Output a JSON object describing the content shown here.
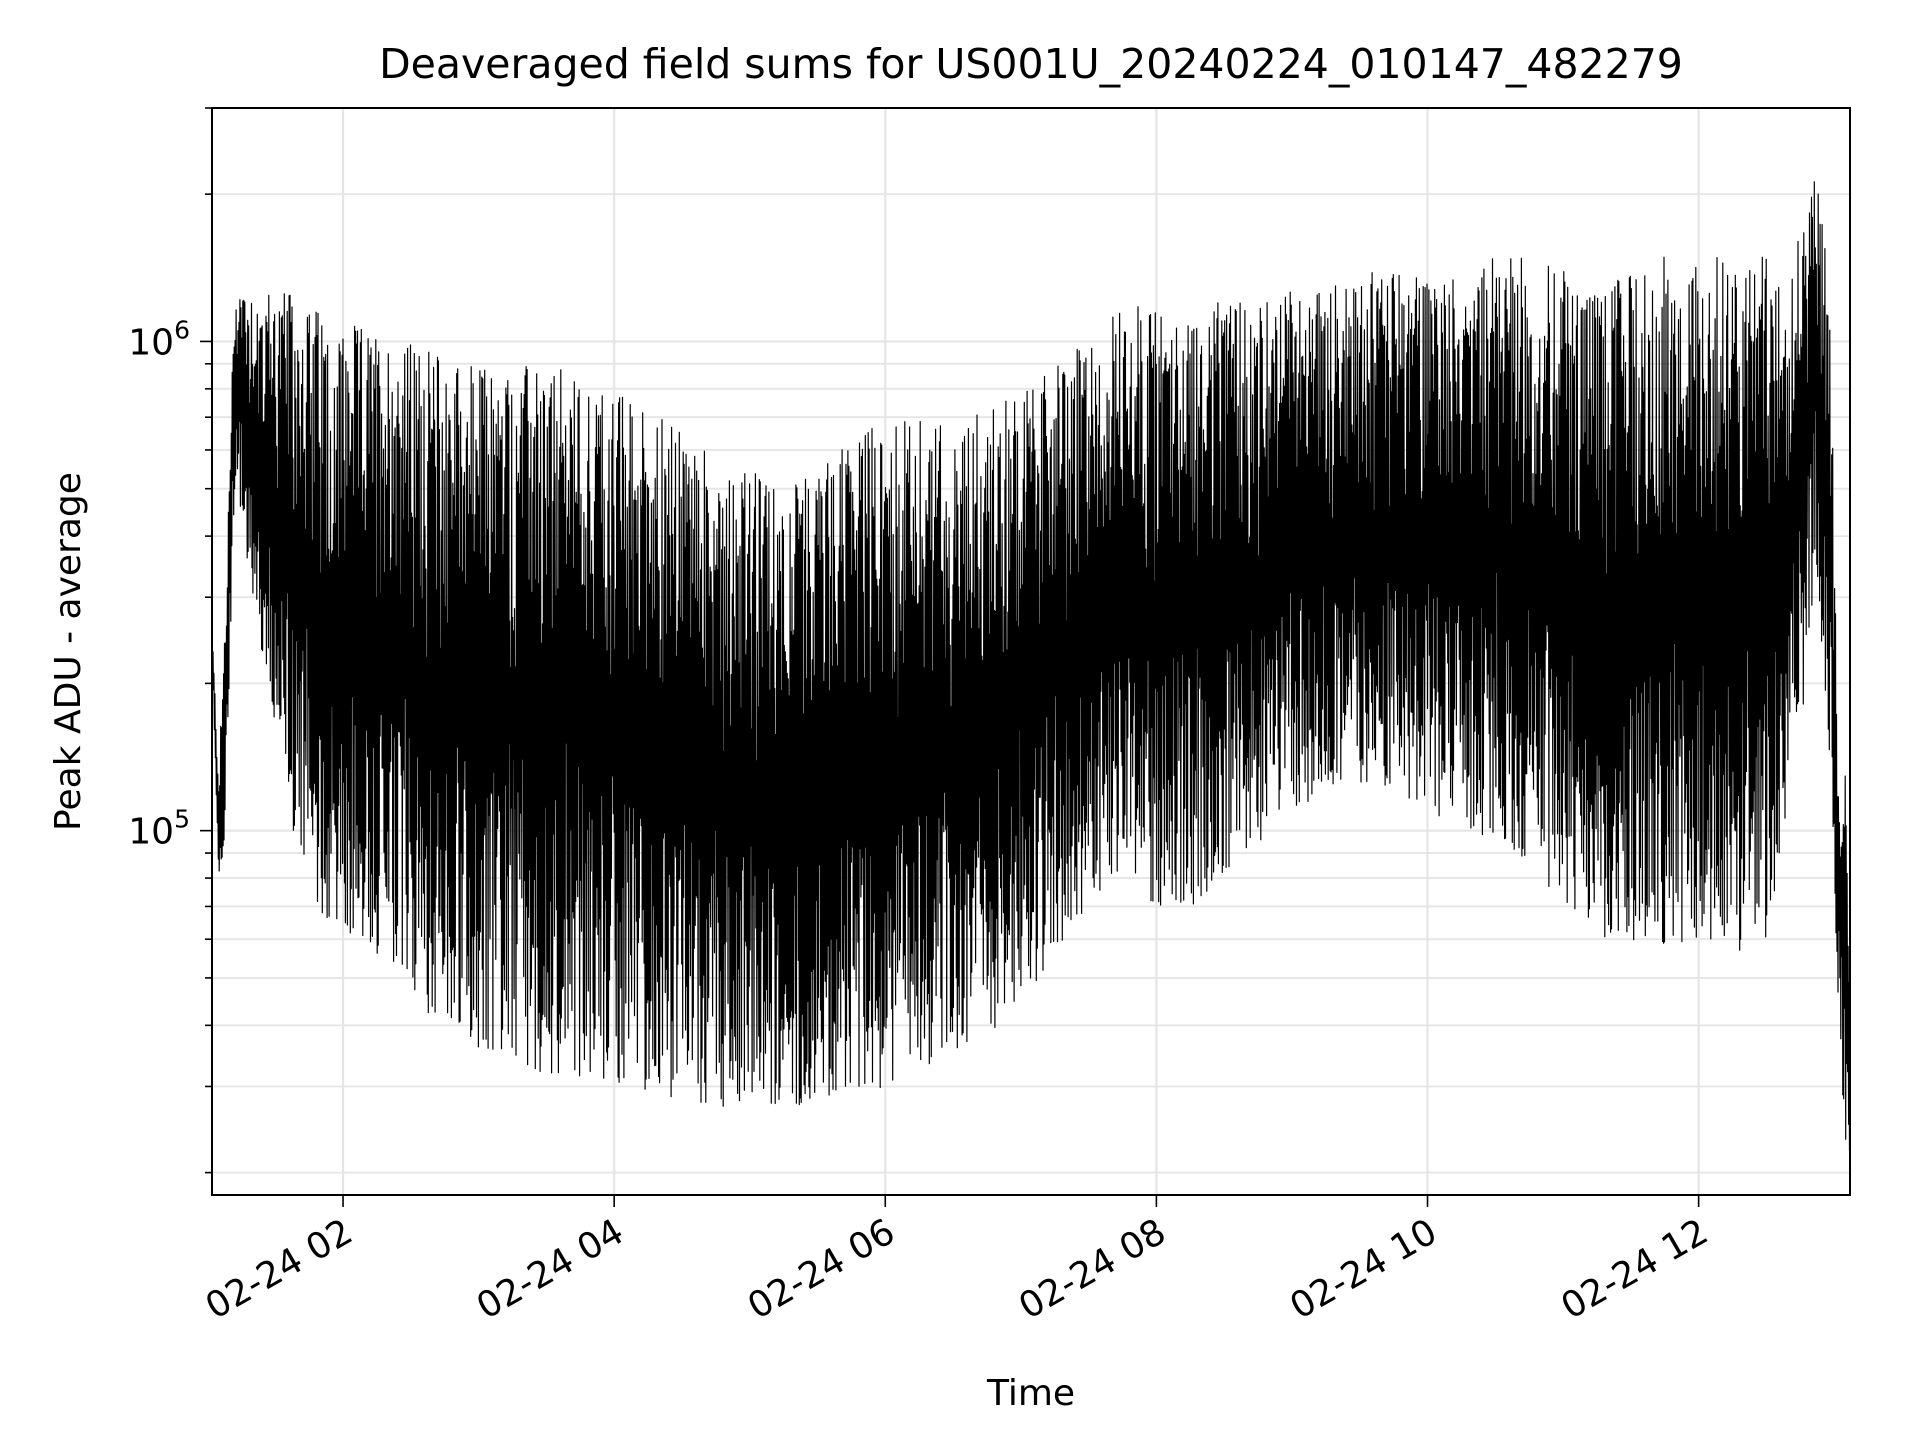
{
  "chart_data": {
    "type": "line",
    "title": "Deaveraged field sums for US001U_20240224_010147_482279",
    "xlabel": "Time",
    "ylabel": "Peak ADU - average",
    "yscale": "log",
    "xlim": [
      "2024-02-24 01:02",
      "2024-02-24 13:07"
    ],
    "ylim": [
      18000,
      3000000
    ],
    "x_ticks": [
      {
        "value": "2024-02-24 02:00",
        "label": "02-24 02"
      },
      {
        "value": "2024-02-24 04:00",
        "label": "02-24 04"
      },
      {
        "value": "2024-02-24 06:00",
        "label": "02-24 06"
      },
      {
        "value": "2024-02-24 08:00",
        "label": "02-24 08"
      },
      {
        "value": "2024-02-24 10:00",
        "label": "02-24 10"
      },
      {
        "value": "2024-02-24 12:00",
        "label": "02-24 12"
      }
    ],
    "y_ticks": [
      {
        "value": 100000,
        "base": "10",
        "exp": "5"
      },
      {
        "value": 1000000,
        "base": "10",
        "exp": "6"
      }
    ],
    "grid": true,
    "line_color": "#000000",
    "grid_color": "#e5e5e5",
    "series": [
      {
        "x": [
          "2024-02-24 01:02",
          "2024-02-24 01:05",
          "2024-02-24 01:08",
          "2024-02-24 01:12",
          "2024-02-24 01:16",
          "2024-02-24 01:20",
          "2024-02-24 01:30",
          "2024-02-24 01:45",
          "2024-02-24 02:00",
          "2024-02-24 02:15",
          "2024-02-24 02:30",
          "2024-02-24 02:45",
          "2024-02-24 03:00",
          "2024-02-24 03:15",
          "2024-02-24 03:30",
          "2024-02-24 03:45",
          "2024-02-24 04:00",
          "2024-02-24 04:15",
          "2024-02-24 04:30",
          "2024-02-24 04:45",
          "2024-02-24 05:00",
          "2024-02-24 05:15",
          "2024-02-24 05:30",
          "2024-02-24 05:45",
          "2024-02-24 06:00",
          "2024-02-24 06:15",
          "2024-02-24 06:30",
          "2024-02-24 06:45",
          "2024-02-24 07:00",
          "2024-02-24 07:15",
          "2024-02-24 07:30",
          "2024-02-24 07:45",
          "2024-02-24 08:00",
          "2024-02-24 08:15",
          "2024-02-24 08:30",
          "2024-02-24 08:45",
          "2024-02-24 09:00",
          "2024-02-24 09:15",
          "2024-02-24 09:30",
          "2024-02-24 09:45",
          "2024-02-24 10:00",
          "2024-02-24 10:15",
          "2024-02-24 10:30",
          "2024-02-24 10:45",
          "2024-02-24 11:00",
          "2024-02-24 11:15",
          "2024-02-24 11:30",
          "2024-02-24 11:45",
          "2024-02-24 12:00",
          "2024-02-24 12:15",
          "2024-02-24 12:30",
          "2024-02-24 12:45",
          "2024-02-24 12:52",
          "2024-02-24 12:58",
          "2024-02-24 13:02",
          "2024-02-24 13:05",
          "2024-02-24 13:07"
        ],
        "y_low": [
          230000,
          80000,
          90000,
          500000,
          400000,
          300000,
          150000,
          70000,
          60000,
          55000,
          45000,
          40000,
          35000,
          33000,
          32000,
          31000,
          30000,
          29000,
          28000,
          27000,
          27000,
          27000,
          28000,
          29000,
          30000,
          32000,
          35000,
          38000,
          45000,
          55000,
          70000,
          80000,
          70000,
          70000,
          75000,
          90000,
          110000,
          120000,
          125000,
          120000,
          110000,
          100000,
          95000,
          85000,
          70000,
          60000,
          58000,
          57000,
          56000,
          55000,
          60000,
          150000,
          350000,
          130000,
          40000,
          22000,
          20000
        ],
        "y_high": [
          260000,
          130000,
          300000,
          1300000,
          1350000,
          1300000,
          1300000,
          1200000,
          1100000,
          1050000,
          1000000,
          950000,
          900000,
          900000,
          900000,
          850000,
          800000,
          750000,
          650000,
          600000,
          550000,
          500000,
          550000,
          650000,
          700000,
          700000,
          700000,
          750000,
          800000,
          900000,
          1000000,
          1200000,
          1200000,
          1200000,
          1200000,
          1200000,
          1300000,
          1300000,
          1400000,
          1400000,
          1400000,
          1400000,
          1500000,
          1500000,
          1400000,
          1300000,
          1400000,
          1500000,
          1500000,
          1500000,
          1500000,
          1700000,
          2300000,
          1300000,
          150000,
          130000,
          60000
        ]
      }
    ]
  }
}
